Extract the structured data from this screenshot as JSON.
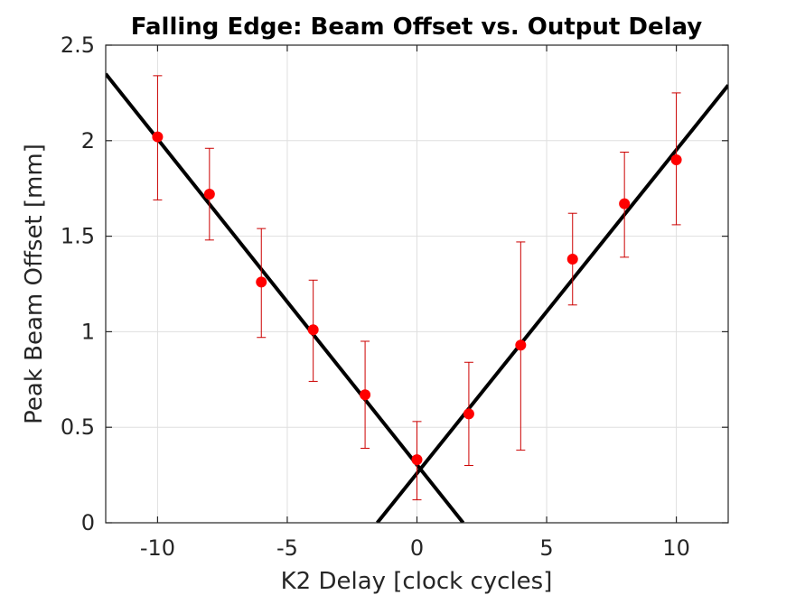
{
  "chart_data": {
    "type": "scatter",
    "title": "Falling Edge: Beam Offset vs. Output Delay",
    "xlabel": "K2 Delay [clock cycles]",
    "ylabel": "Peak Beam Offset [mm]",
    "xlim": [
      -12,
      12
    ],
    "ylim": [
      0,
      2.5
    ],
    "xticks": [
      -10,
      -5,
      0,
      5,
      10
    ],
    "xtick_labels": [
      "-10",
      "-5",
      "0",
      "5",
      "10"
    ],
    "yticks": [
      0,
      0.5,
      1,
      1.5,
      2,
      2.5
    ],
    "ytick_labels": [
      "0",
      "0.5",
      "1",
      "1.5",
      "2",
      "2.5"
    ],
    "grid": true,
    "colors": {
      "points": "#ff0000",
      "errorbars": "#cc0000",
      "fit": "#000000"
    },
    "points": [
      {
        "x": -10,
        "y": 2.02,
        "err_low": 1.69,
        "err_high": 2.34
      },
      {
        "x": -8,
        "y": 1.72,
        "err_low": 1.48,
        "err_high": 1.96
      },
      {
        "x": -6,
        "y": 1.26,
        "err_low": 0.97,
        "err_high": 1.54
      },
      {
        "x": -4,
        "y": 1.01,
        "err_low": 0.74,
        "err_high": 1.27
      },
      {
        "x": -2,
        "y": 0.67,
        "err_low": 0.39,
        "err_high": 0.95
      },
      {
        "x": 0,
        "y": 0.33,
        "err_low": 0.12,
        "err_high": 0.53
      },
      {
        "x": 2,
        "y": 0.57,
        "err_low": 0.3,
        "err_high": 0.84
      },
      {
        "x": 4,
        "y": 0.93,
        "err_low": 0.38,
        "err_high": 1.47
      },
      {
        "x": 6,
        "y": 1.38,
        "err_low": 1.14,
        "err_high": 1.62
      },
      {
        "x": 8,
        "y": 1.67,
        "err_low": 1.39,
        "err_high": 1.94
      },
      {
        "x": 10,
        "y": 1.9,
        "err_low": 1.56,
        "err_high": 2.25
      }
    ],
    "fit_lines": [
      {
        "x": [
          -12,
          1.78
        ],
        "y": [
          2.35,
          0
        ]
      },
      {
        "x": [
          -1.53,
          12
        ],
        "y": [
          0,
          2.29
        ]
      }
    ]
  }
}
